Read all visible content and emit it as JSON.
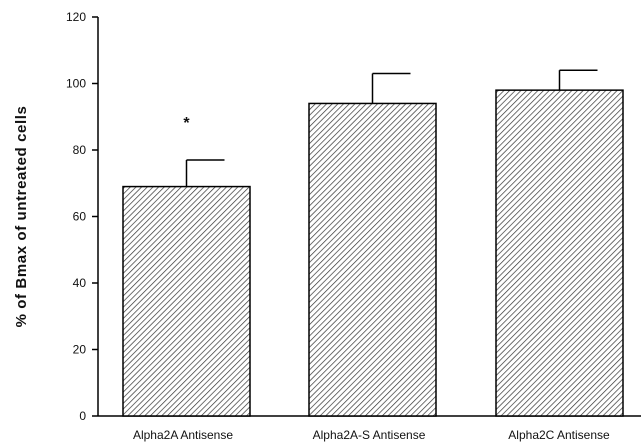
{
  "chart_data": {
    "type": "bar",
    "categories": [
      "Alpha2A Antisense",
      "Alpha2A-S Antisense",
      "Alpha2C Antisense"
    ],
    "values": [
      69,
      94,
      98
    ],
    "errors": [
      8,
      9,
      6
    ],
    "title": "",
    "xlabel": "",
    "ylabel": "% of Bmax of untreated cells",
    "ylim": [
      0,
      120
    ],
    "yticks": [
      0,
      20,
      40,
      60,
      80,
      100,
      120
    ],
    "annotations": [
      {
        "category": "Alpha2A Antisense",
        "text": "*"
      }
    ],
    "bar_fill": "hatched",
    "grid": false,
    "legend": "none"
  }
}
